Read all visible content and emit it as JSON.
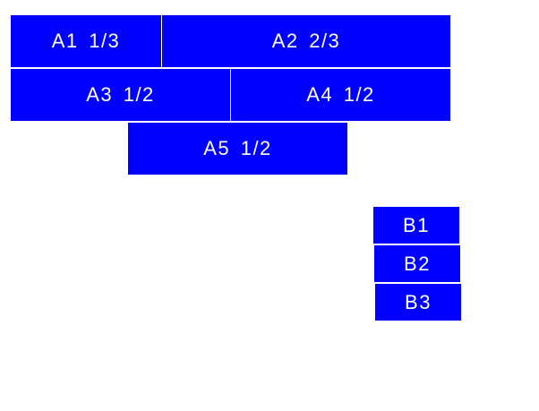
{
  "colors": {
    "box": "#0000ff",
    "text": "#ffffff"
  },
  "group_a": [
    {
      "label": "A1 1/3"
    },
    {
      "label": "A2 2/3"
    },
    {
      "label": "A3 1/2"
    },
    {
      "label": "A4 1/2"
    },
    {
      "label": "A5 1/2"
    }
  ],
  "group_b": [
    {
      "label": "B1"
    },
    {
      "label": "B2"
    },
    {
      "label": "B3"
    }
  ]
}
